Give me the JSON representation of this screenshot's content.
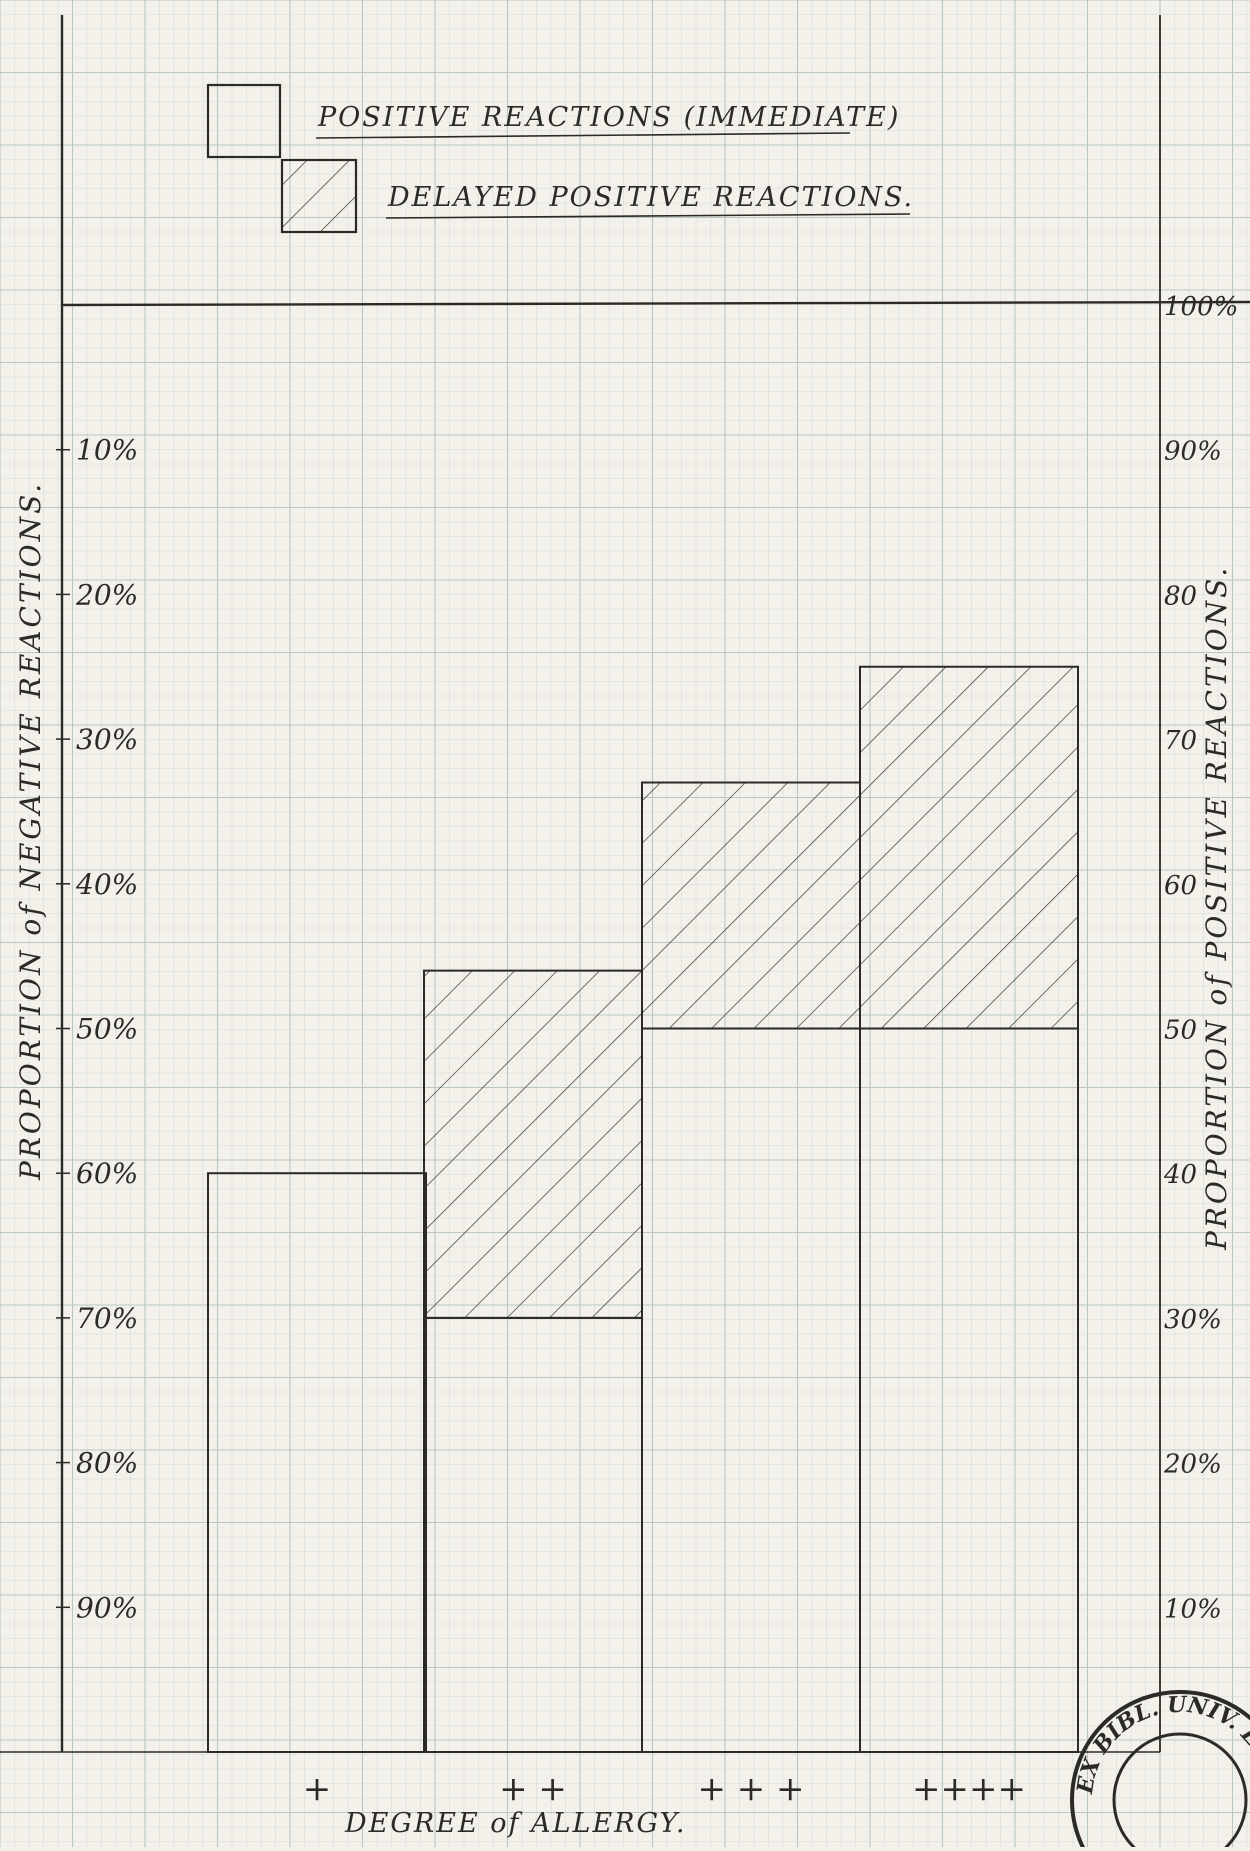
{
  "chart_data": {
    "type": "bar",
    "categories": [
      "+",
      "+ +",
      "+ + +",
      "++++"
    ],
    "xlabel": "DEGREE of ALLERGY.",
    "ylabel_left": "PROPORTION of NEGATIVE REACTIONS.",
    "ylabel_right": "PROPORTION of POSITIVE REACTIONS.",
    "ylim": [
      0,
      100
    ],
    "stacked": true,
    "legend_position": "top-center",
    "grid": true,
    "series": [
      {
        "name": "POSITIVE REACTIONS (IMMEDIATE)",
        "pattern": "plain",
        "values": [
          40,
          30,
          50,
          50
        ]
      },
      {
        "name": "DELAYED POSITIVE REACTIONS.",
        "pattern": "hatched",
        "values": [
          0,
          24,
          17,
          25
        ]
      }
    ],
    "left_ticks": [
      {
        "value": 90,
        "label": "10%"
      },
      {
        "value": 80,
        "label": "20%"
      },
      {
        "value": 70,
        "label": "30%"
      },
      {
        "value": 60,
        "label": "40%"
      },
      {
        "value": 50,
        "label": "50%"
      },
      {
        "value": 40,
        "label": "60%"
      },
      {
        "value": 30,
        "label": "70%"
      },
      {
        "value": 20,
        "label": "80%"
      },
      {
        "value": 10,
        "label": "90%"
      }
    ],
    "right_ticks": [
      {
        "value": 100,
        "label": "100%"
      },
      {
        "value": 90,
        "label": "90%"
      },
      {
        "value": 80,
        "label": "80"
      },
      {
        "value": 70,
        "label": "70"
      },
      {
        "value": 60,
        "label": "60"
      },
      {
        "value": 50,
        "label": "50"
      },
      {
        "value": 40,
        "label": "40"
      },
      {
        "value": 30,
        "label": "30%"
      },
      {
        "value": 20,
        "label": "20%"
      },
      {
        "value": 10,
        "label": "10%"
      }
    ]
  },
  "stamp_text": "EX BIBL. UNIV. EDINBURGH",
  "colors": {
    "paper": "#f3f1ea",
    "grid_minor": "#d5dedc",
    "grid_major": "#b9c6c4",
    "ink": "#2c2a26",
    "ink_faint": "#5a5650"
  }
}
